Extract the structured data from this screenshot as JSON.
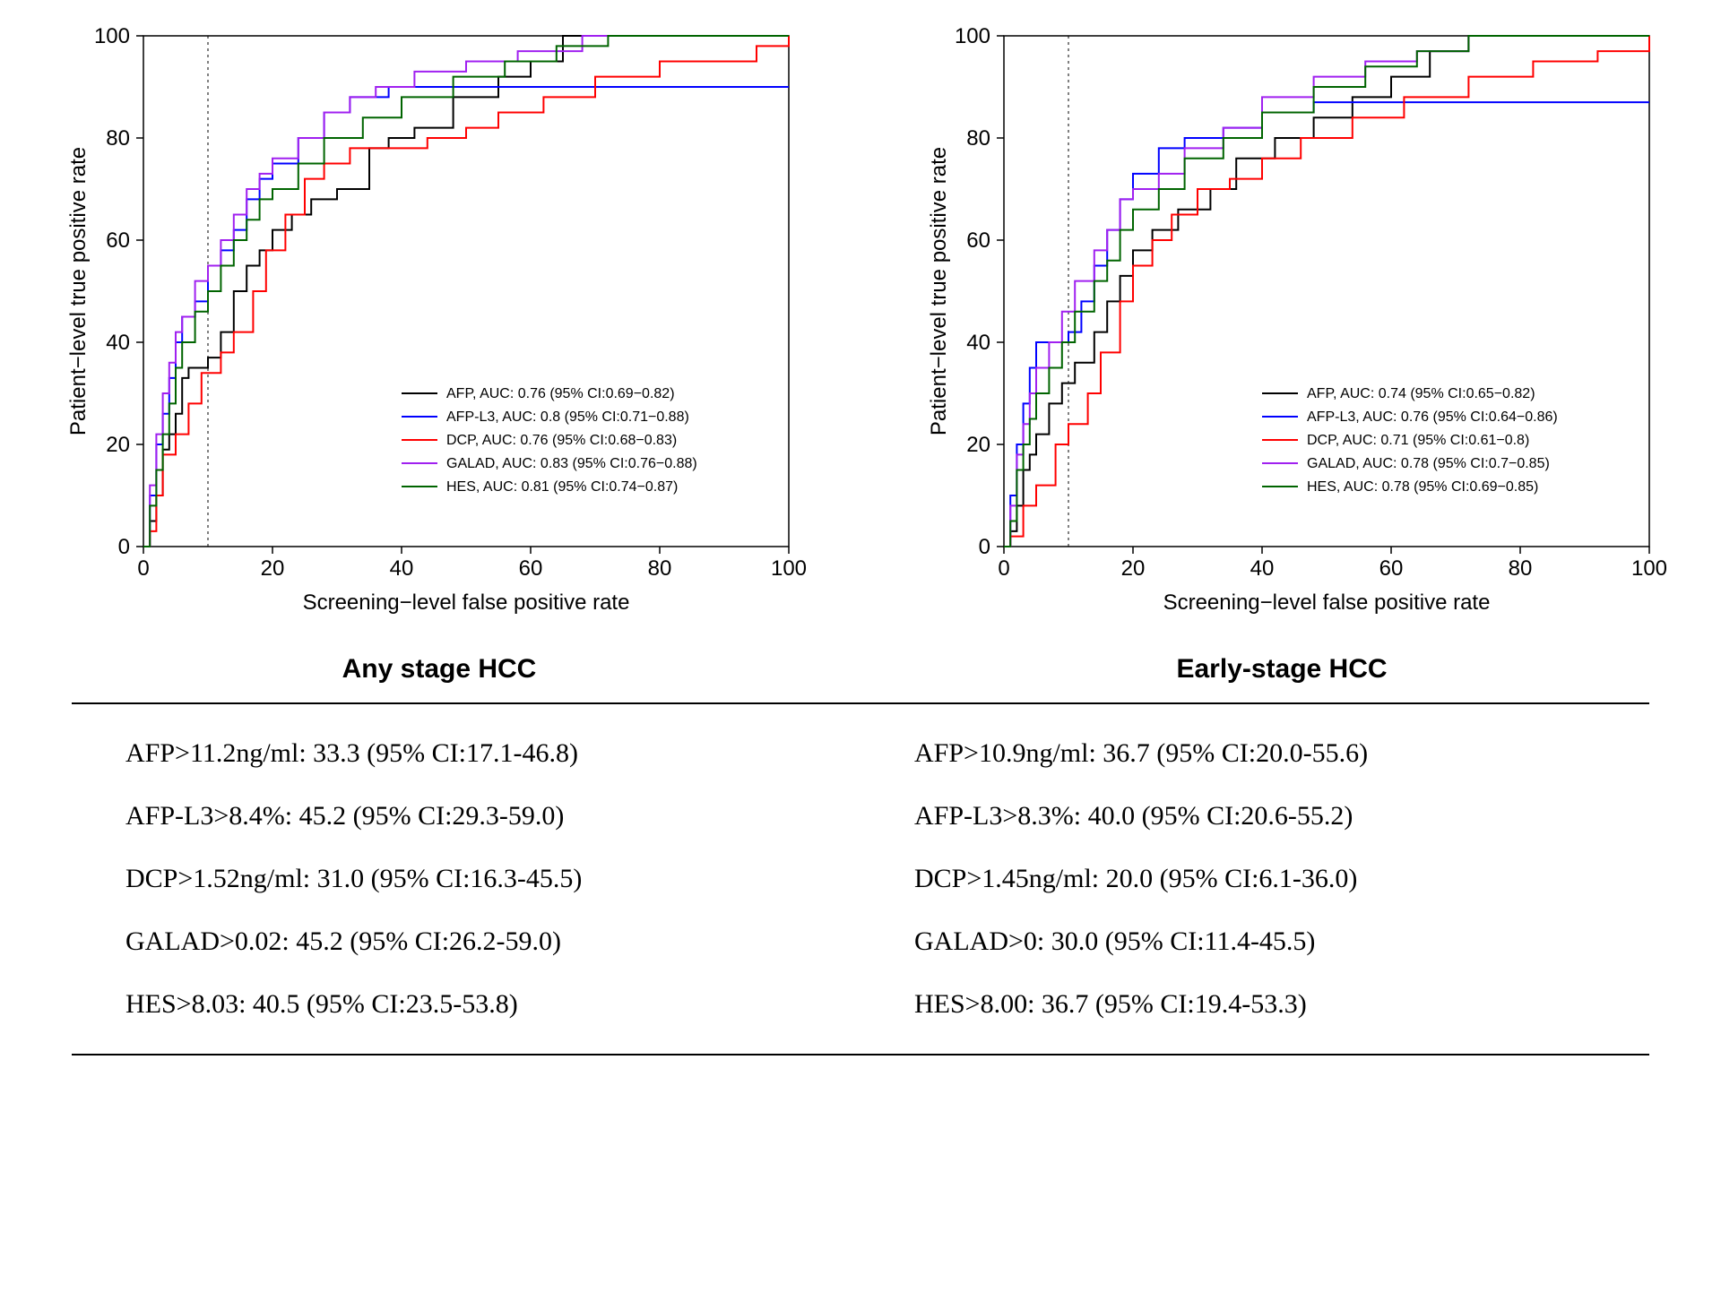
{
  "ylabel": "Patient−level true positive rate",
  "xlabel": "Screening−level false positive rate",
  "xlim": [
    0,
    100
  ],
  "ylim": [
    0,
    100
  ],
  "ticks": [
    0,
    20,
    40,
    60,
    80,
    100
  ],
  "vline_x": 10,
  "legend_fontsize": 16,
  "axis_fontsize": 24,
  "line_width": 2,
  "panels": [
    {
      "title": "Any stage HCC",
      "series": [
        {
          "name": "AFP",
          "color": "#000000",
          "label": "AFP, AUC: 0.76 (95% CI:0.69−0.82)",
          "points": [
            [
              0,
              0
            ],
            [
              1,
              5
            ],
            [
              2,
              10
            ],
            [
              3,
              19
            ],
            [
              4,
              22
            ],
            [
              5,
              26
            ],
            [
              6,
              33
            ],
            [
              7,
              35
            ],
            [
              10,
              37
            ],
            [
              12,
              42
            ],
            [
              14,
              50
            ],
            [
              16,
              55
            ],
            [
              18,
              58
            ],
            [
              20,
              62
            ],
            [
              23,
              65
            ],
            [
              26,
              68
            ],
            [
              30,
              70
            ],
            [
              35,
              78
            ],
            [
              38,
              80
            ],
            [
              42,
              82
            ],
            [
              48,
              88
            ],
            [
              55,
              92
            ],
            [
              60,
              95
            ],
            [
              65,
              100
            ],
            [
              100,
              100
            ]
          ]
        },
        {
          "name": "AFP-L3",
          "color": "#0000ff",
          "label": "AFP-L3, AUC: 0.8 (95% CI:0.71−0.88)",
          "points": [
            [
              0,
              0
            ],
            [
              1,
              10
            ],
            [
              2,
              20
            ],
            [
              3,
              26
            ],
            [
              4,
              33
            ],
            [
              5,
              40
            ],
            [
              6,
              45
            ],
            [
              8,
              48
            ],
            [
              10,
              55
            ],
            [
              12,
              58
            ],
            [
              14,
              62
            ],
            [
              16,
              68
            ],
            [
              18,
              72
            ],
            [
              20,
              75
            ],
            [
              24,
              80
            ],
            [
              28,
              85
            ],
            [
              32,
              88
            ],
            [
              38,
              90
            ],
            [
              45,
              90
            ],
            [
              60,
              90
            ],
            [
              100,
              90
            ]
          ]
        },
        {
          "name": "DCP",
          "color": "#ff0000",
          "label": "DCP, AUC: 0.76 (95% CI:0.68−0.83)",
          "points": [
            [
              0,
              0
            ],
            [
              1,
              3
            ],
            [
              2,
              10
            ],
            [
              3,
              18
            ],
            [
              5,
              22
            ],
            [
              7,
              28
            ],
            [
              9,
              34
            ],
            [
              12,
              38
            ],
            [
              14,
              42
            ],
            [
              17,
              50
            ],
            [
              19,
              58
            ],
            [
              22,
              65
            ],
            [
              25,
              72
            ],
            [
              28,
              75
            ],
            [
              32,
              78
            ],
            [
              38,
              78
            ],
            [
              44,
              80
            ],
            [
              50,
              82
            ],
            [
              55,
              85
            ],
            [
              62,
              88
            ],
            [
              70,
              92
            ],
            [
              80,
              95
            ],
            [
              95,
              98
            ],
            [
              100,
              100
            ]
          ]
        },
        {
          "name": "GALAD",
          "color": "#a020f0",
          "label": "GALAD, AUC: 0.83 (95% CI:0.76−0.88)",
          "points": [
            [
              0,
              0
            ],
            [
              1,
              12
            ],
            [
              2,
              22
            ],
            [
              3,
              30
            ],
            [
              4,
              36
            ],
            [
              5,
              42
            ],
            [
              6,
              45
            ],
            [
              8,
              52
            ],
            [
              10,
              55
            ],
            [
              12,
              60
            ],
            [
              14,
              65
            ],
            [
              16,
              70
            ],
            [
              18,
              73
            ],
            [
              20,
              76
            ],
            [
              24,
              80
            ],
            [
              28,
              85
            ],
            [
              32,
              88
            ],
            [
              36,
              90
            ],
            [
              42,
              93
            ],
            [
              50,
              95
            ],
            [
              58,
              97
            ],
            [
              68,
              100
            ],
            [
              100,
              100
            ]
          ]
        },
        {
          "name": "HES",
          "color": "#006400",
          "label": "HES, AUC: 0.81 (95% CI:0.74−0.87)",
          "points": [
            [
              0,
              0
            ],
            [
              1,
              8
            ],
            [
              2,
              15
            ],
            [
              3,
              22
            ],
            [
              4,
              28
            ],
            [
              5,
              35
            ],
            [
              6,
              40
            ],
            [
              8,
              46
            ],
            [
              10,
              50
            ],
            [
              12,
              55
            ],
            [
              14,
              60
            ],
            [
              16,
              64
            ],
            [
              18,
              68
            ],
            [
              20,
              70
            ],
            [
              24,
              75
            ],
            [
              28,
              80
            ],
            [
              34,
              84
            ],
            [
              40,
              88
            ],
            [
              48,
              92
            ],
            [
              56,
              95
            ],
            [
              64,
              98
            ],
            [
              72,
              100
            ],
            [
              100,
              100
            ]
          ]
        }
      ],
      "stats": [
        "AFP>11.2ng/ml: 33.3 (95% CI:17.1-46.8)",
        "AFP-L3>8.4%: 45.2 (95% CI:29.3-59.0)",
        "DCP>1.52ng/ml: 31.0 (95% CI:16.3-45.5)",
        "GALAD>0.02: 45.2 (95% CI:26.2-59.0)",
        "HES>8.03: 40.5 (95% CI:23.5-53.8)"
      ]
    },
    {
      "title": "Early-stage HCC",
      "series": [
        {
          "name": "AFP",
          "color": "#000000",
          "label": "AFP, AUC: 0.74 (95% CI:0.65−0.82)",
          "points": [
            [
              0,
              0
            ],
            [
              1,
              3
            ],
            [
              2,
              8
            ],
            [
              3,
              15
            ],
            [
              4,
              18
            ],
            [
              5,
              22
            ],
            [
              7,
              28
            ],
            [
              9,
              32
            ],
            [
              11,
              36
            ],
            [
              14,
              42
            ],
            [
              16,
              48
            ],
            [
              18,
              53
            ],
            [
              20,
              58
            ],
            [
              23,
              62
            ],
            [
              27,
              66
            ],
            [
              32,
              70
            ],
            [
              36,
              76
            ],
            [
              42,
              80
            ],
            [
              48,
              84
            ],
            [
              54,
              88
            ],
            [
              60,
              92
            ],
            [
              66,
              97
            ],
            [
              72,
              100
            ],
            [
              100,
              100
            ]
          ]
        },
        {
          "name": "AFP-L3",
          "color": "#0000ff",
          "label": "AFP-L3, AUC: 0.76 (95% CI:0.64−0.86)",
          "points": [
            [
              0,
              0
            ],
            [
              1,
              10
            ],
            [
              2,
              20
            ],
            [
              3,
              28
            ],
            [
              4,
              35
            ],
            [
              5,
              40
            ],
            [
              6,
              40
            ],
            [
              10,
              42
            ],
            [
              12,
              48
            ],
            [
              14,
              55
            ],
            [
              16,
              62
            ],
            [
              18,
              68
            ],
            [
              20,
              73
            ],
            [
              24,
              78
            ],
            [
              28,
              80
            ],
            [
              34,
              82
            ],
            [
              40,
              85
            ],
            [
              48,
              87
            ],
            [
              58,
              87
            ],
            [
              70,
              87
            ],
            [
              100,
              87
            ]
          ]
        },
        {
          "name": "DCP",
          "color": "#ff0000",
          "label": "DCP, AUC: 0.71 (95% CI:0.61−0.8)",
          "points": [
            [
              0,
              0
            ],
            [
              1,
              2
            ],
            [
              3,
              8
            ],
            [
              5,
              12
            ],
            [
              8,
              20
            ],
            [
              10,
              24
            ],
            [
              13,
              30
            ],
            [
              15,
              38
            ],
            [
              18,
              48
            ],
            [
              20,
              55
            ],
            [
              23,
              60
            ],
            [
              26,
              65
            ],
            [
              30,
              70
            ],
            [
              35,
              72
            ],
            [
              40,
              76
            ],
            [
              46,
              80
            ],
            [
              54,
              84
            ],
            [
              62,
              88
            ],
            [
              72,
              92
            ],
            [
              82,
              95
            ],
            [
              92,
              97
            ],
            [
              100,
              100
            ]
          ]
        },
        {
          "name": "GALAD",
          "color": "#a020f0",
          "label": "GALAD, AUC: 0.78 (95% CI:0.7−0.85)",
          "points": [
            [
              0,
              0
            ],
            [
              1,
              8
            ],
            [
              2,
              18
            ],
            [
              3,
              24
            ],
            [
              4,
              30
            ],
            [
              5,
              35
            ],
            [
              7,
              40
            ],
            [
              9,
              46
            ],
            [
              11,
              52
            ],
            [
              14,
              58
            ],
            [
              16,
              62
            ],
            [
              18,
              68
            ],
            [
              20,
              70
            ],
            [
              24,
              73
            ],
            [
              28,
              78
            ],
            [
              34,
              82
            ],
            [
              40,
              88
            ],
            [
              48,
              92
            ],
            [
              56,
              95
            ],
            [
              64,
              97
            ],
            [
              72,
              100
            ],
            [
              100,
              100
            ]
          ]
        },
        {
          "name": "HES",
          "color": "#006400",
          "label": "HES, AUC: 0.78 (95% CI:0.69−0.85)",
          "points": [
            [
              0,
              0
            ],
            [
              1,
              5
            ],
            [
              2,
              15
            ],
            [
              3,
              20
            ],
            [
              4,
              25
            ],
            [
              5,
              30
            ],
            [
              7,
              35
            ],
            [
              9,
              40
            ],
            [
              11,
              46
            ],
            [
              14,
              52
            ],
            [
              16,
              56
            ],
            [
              18,
              62
            ],
            [
              20,
              66
            ],
            [
              24,
              70
            ],
            [
              28,
              76
            ],
            [
              34,
              80
            ],
            [
              40,
              85
            ],
            [
              48,
              90
            ],
            [
              56,
              94
            ],
            [
              64,
              97
            ],
            [
              72,
              100
            ],
            [
              100,
              100
            ]
          ]
        }
      ],
      "stats": [
        "AFP>10.9ng/ml: 36.7 (95% CI:20.0-55.6)",
        "AFP-L3>8.3%: 40.0 (95% CI:20.6-55.2)",
        "DCP>1.45ng/ml: 20.0 (95% CI:6.1-36.0)",
        "GALAD>0: 30.0 (95% CI:11.4-45.5)",
        "HES>8.00: 36.7 (95% CI:19.4-53.3)"
      ]
    }
  ]
}
